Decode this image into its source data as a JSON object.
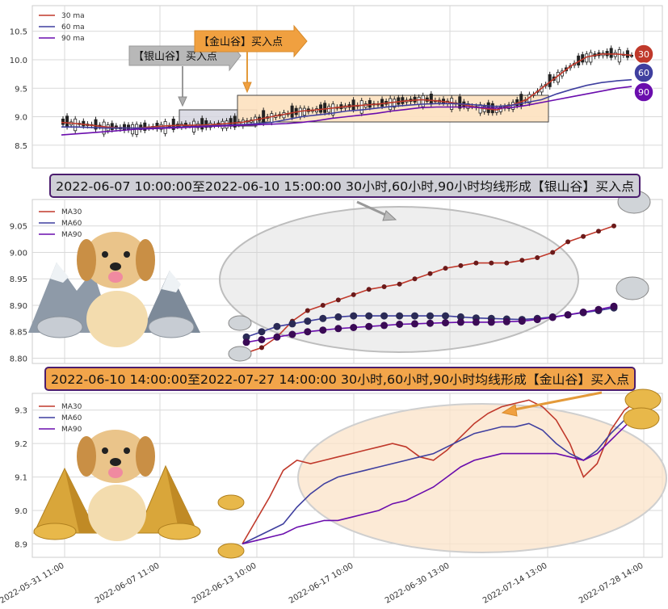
{
  "colors": {
    "ma30": "#c0392b",
    "ma60": "#3f3f9f",
    "ma90": "#6a0dad",
    "grid": "#d9d9d9",
    "silver_zone": "#d3d3df",
    "gold_zone": "#fde1bf",
    "silver_label": "#b5b5b5",
    "gold_label": "#f0a040",
    "banner_silver": "#cfcfd6",
    "banner_gold": "#f2a54a",
    "banner_border": "#4b1d6e",
    "ellipse_gray": "#c8c8c8",
    "ellipse_peach": "#f6d4b0"
  },
  "panel1": {
    "legend": [
      "30 ma",
      "60 ma",
      "90 ma"
    ],
    "yticks": [
      "10.5",
      "10.0",
      "9.5",
      "9.0",
      "8.5"
    ],
    "ylim": [
      8.1,
      10.95
    ],
    "badges": [
      "30",
      "60",
      "90"
    ],
    "silver_label": "【银山谷】买入点",
    "gold_label": "【金山谷】买入点"
  },
  "panel2": {
    "banner": "2022-06-07 10:00:00至2022-06-10 15:00:00 30小时,60小时,90小时均线形成【银山谷】买入点",
    "legend": [
      "MA30",
      "MA60",
      "MA90"
    ],
    "yticks": [
      "9.05",
      "9.00",
      "8.95",
      "8.90",
      "8.85",
      "8.80"
    ],
    "ylim": [
      8.79,
      9.1
    ]
  },
  "panel3": {
    "banner": "2022-06-10 14:00:00至2022-07-27 14:00:00 30小时,60小时,90小时均线形成【金山谷】买入点",
    "legend": [
      "MA30",
      "MA60",
      "MA90"
    ],
    "yticks": [
      "9.3",
      "9.2",
      "9.1",
      "9.0",
      "8.9"
    ],
    "ylim": [
      8.86,
      9.35
    ],
    "xticks": [
      "2022-05-31 11:00",
      "2022-06-07 11:00",
      "2022-06-13 10:00",
      "2022-06-17 10:00",
      "2022-06-30 13:00",
      "2022-07-14 13:00",
      "2022-07-28 14:00"
    ]
  },
  "chart_data": [
    {
      "type": "line",
      "series": [
        {
          "name": "30 ma",
          "values": [
            8.9,
            8.88,
            8.85,
            8.82,
            8.8,
            8.8,
            8.82,
            8.84,
            8.85,
            8.85,
            8.86,
            8.88,
            8.9,
            8.95,
            9.0,
            9.05,
            9.1,
            9.12,
            9.15,
            9.18,
            9.2,
            9.22,
            9.25,
            9.28,
            9.3,
            9.28,
            9.25,
            9.2,
            9.15,
            9.12,
            9.2,
            9.3,
            9.5,
            9.7,
            9.9,
            10.05,
            10.1,
            10.1,
            10.08
          ]
        },
        {
          "name": "60 ma",
          "values": [
            8.82,
            8.82,
            8.81,
            8.8,
            8.8,
            8.8,
            8.8,
            8.81,
            8.82,
            8.83,
            8.84,
            8.85,
            8.86,
            8.88,
            8.9,
            8.95,
            9.0,
            9.03,
            9.06,
            9.1,
            9.12,
            9.15,
            9.18,
            9.2,
            9.22,
            9.23,
            9.23,
            9.22,
            9.2,
            9.18,
            9.2,
            9.25,
            9.3,
            9.4,
            9.48,
            9.55,
            9.6,
            9.63,
            9.65
          ]
        },
        {
          "name": "90 ma",
          "values": [
            8.68,
            8.7,
            8.72,
            8.74,
            8.76,
            8.78,
            8.79,
            8.8,
            8.81,
            8.82,
            8.83,
            8.84,
            8.85,
            8.86,
            8.87,
            8.88,
            8.9,
            8.93,
            8.97,
            9.0,
            9.03,
            9.06,
            9.1,
            9.13,
            9.16,
            9.17,
            9.17,
            9.17,
            9.16,
            9.15,
            9.16,
            9.2,
            9.25,
            9.3,
            9.35,
            9.4,
            9.45,
            9.5,
            9.53
          ]
        }
      ]
    },
    {
      "type": "line",
      "series": [
        {
          "name": "MA30",
          "values": [
            8.81,
            8.82,
            8.84,
            8.87,
            8.89,
            8.9,
            8.91,
            8.92,
            8.93,
            8.935,
            8.94,
            8.95,
            8.96,
            8.97,
            8.975,
            8.98,
            8.98,
            8.98,
            8.985,
            8.99,
            9.0,
            9.02,
            9.03,
            9.04,
            9.05
          ]
        },
        {
          "name": "MA60",
          "values": [
            8.84,
            8.85,
            8.86,
            8.865,
            8.87,
            8.875,
            8.878,
            8.88,
            8.88,
            8.88,
            8.88,
            8.88,
            8.88,
            8.88,
            8.878,
            8.876,
            8.875,
            8.874,
            8.873,
            8.875,
            8.878,
            8.882,
            8.886,
            8.89,
            8.895
          ]
        },
        {
          "name": "MA90",
          "values": [
            8.83,
            8.835,
            8.84,
            8.845,
            8.85,
            8.853,
            8.856,
            8.858,
            8.86,
            8.862,
            8.864,
            8.865,
            8.866,
            8.867,
            8.868,
            8.868,
            8.868,
            8.869,
            8.87,
            8.873,
            8.877,
            8.882,
            8.887,
            8.892,
            8.898
          ]
        }
      ]
    },
    {
      "type": "line",
      "series": [
        {
          "name": "MA30",
          "values": [
            8.9,
            8.97,
            9.04,
            9.12,
            9.15,
            9.14,
            9.15,
            9.16,
            9.17,
            9.18,
            9.19,
            9.2,
            9.19,
            9.16,
            9.15,
            9.18,
            9.22,
            9.26,
            9.29,
            9.31,
            9.32,
            9.33,
            9.31,
            9.27,
            9.2,
            9.1,
            9.14,
            9.24,
            9.3,
            9.33
          ]
        },
        {
          "name": "MA60",
          "values": [
            8.9,
            8.92,
            8.94,
            8.96,
            9.01,
            9.05,
            9.08,
            9.1,
            9.11,
            9.12,
            9.13,
            9.14,
            9.15,
            9.16,
            9.17,
            9.19,
            9.21,
            9.23,
            9.24,
            9.25,
            9.25,
            9.26,
            9.24,
            9.2,
            9.17,
            9.15,
            9.18,
            9.23,
            9.27,
            9.3
          ]
        },
        {
          "name": "MA90",
          "values": [
            8.9,
            8.91,
            8.92,
            8.93,
            8.95,
            8.96,
            8.97,
            8.97,
            8.98,
            8.99,
            9.0,
            9.02,
            9.03,
            9.05,
            9.07,
            9.1,
            9.13,
            9.15,
            9.16,
            9.17,
            9.17,
            9.17,
            9.17,
            9.17,
            9.16,
            9.15,
            9.17,
            9.21,
            9.25,
            9.29
          ]
        }
      ]
    }
  ]
}
